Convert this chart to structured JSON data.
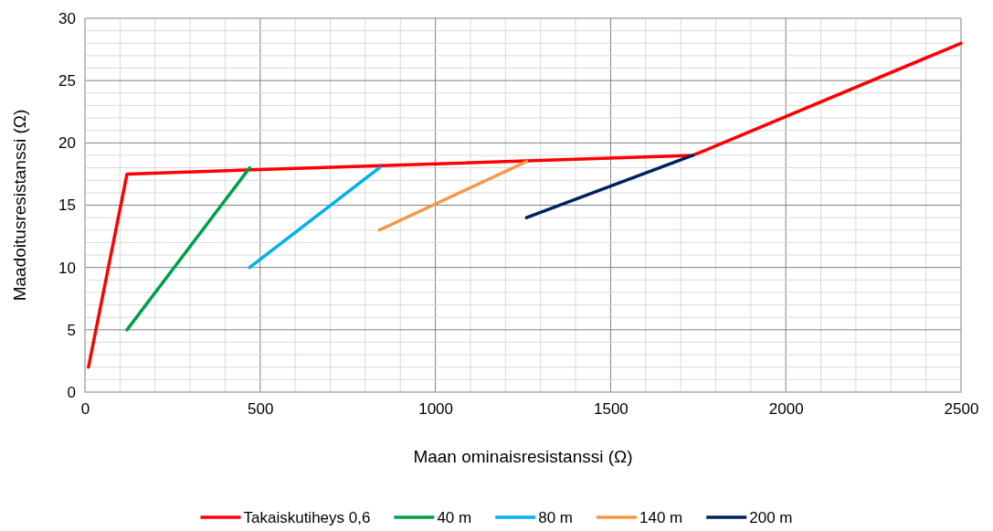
{
  "chart_data": {
    "type": "line",
    "xlabel": "Maan ominaisresistanssi (Ω)",
    "ylabel": "Maadoitusresistanssi (Ω)",
    "xlim": [
      0,
      2500
    ],
    "ylim": [
      0,
      30
    ],
    "xticks": [
      0,
      {
        "value": 100,
        "label": null
      },
      {
        "value": 200,
        "label": null
      },
      {
        "value": 300,
        "label": null
      },
      {
        "value": 400,
        "label": null
      },
      500,
      {
        "value": 600,
        "label": null
      },
      {
        "value": 700,
        "label": null
      },
      {
        "value": 800,
        "label": null
      },
      {
        "value": 900,
        "label": null
      },
      1000,
      {
        "value": 1100,
        "label": null
      },
      {
        "value": 1200,
        "label": null
      },
      {
        "value": 1300,
        "label": null
      },
      {
        "value": 1400,
        "label": null
      },
      1500,
      {
        "value": 1600,
        "label": null
      },
      {
        "value": 1700,
        "label": null
      },
      {
        "value": 1800,
        "label": null
      },
      {
        "value": 1900,
        "label": null
      },
      2000,
      {
        "value": 2100,
        "label": null
      },
      {
        "value": 2200,
        "label": null
      },
      {
        "value": 2300,
        "label": null
      },
      {
        "value": 2400,
        "label": null
      },
      2500
    ],
    "yticks": [
      0,
      {
        "value": 1,
        "label": null
      },
      {
        "value": 2,
        "label": null
      },
      {
        "value": 3,
        "label": null
      },
      {
        "value": 4,
        "label": null
      },
      5,
      {
        "value": 6,
        "label": null
      },
      {
        "value": 7,
        "label": null
      },
      {
        "value": 8,
        "label": null
      },
      {
        "value": 9,
        "label": null
      },
      10,
      {
        "value": 11,
        "label": null
      },
      {
        "value": 12,
        "label": null
      },
      {
        "value": 13,
        "label": null
      },
      {
        "value": 14,
        "label": null
      },
      15,
      {
        "value": 16,
        "label": null
      },
      {
        "value": 17,
        "label": null
      },
      {
        "value": 18,
        "label": null
      },
      {
        "value": 19,
        "label": null
      },
      20,
      {
        "value": 21,
        "label": null
      },
      {
        "value": 22,
        "label": null
      },
      {
        "value": 23,
        "label": null
      },
      {
        "value": 24,
        "label": null
      },
      25,
      {
        "value": 26,
        "label": null
      },
      {
        "value": 27,
        "label": null
      },
      {
        "value": 28,
        "label": null
      },
      {
        "value": 29,
        "label": null
      },
      30
    ],
    "grid": true,
    "legend": "bottom",
    "marker": "none",
    "line_style": "solid",
    "series": [
      {
        "name": "Takaiskutiheys 0,6",
        "color": "#ff0000",
        "x": [
          10,
          120,
          1735,
          2500
        ],
        "values": [
          2,
          17.5,
          19,
          28
        ]
      },
      {
        "name": "40 m",
        "color": "#00a04a",
        "x": [
          120,
          470
        ],
        "values": [
          5,
          18
        ]
      },
      {
        "name": "80 m",
        "color": "#00b0f0",
        "x": [
          470,
          840
        ],
        "values": [
          10,
          18
        ]
      },
      {
        "name": "140 m",
        "color": "#f79646",
        "x": [
          840,
          1260
        ],
        "values": [
          13,
          18.5
        ]
      },
      {
        "name": "200 m",
        "color": "#002060",
        "x": [
          1260,
          1735
        ],
        "values": [
          14,
          19
        ]
      }
    ]
  }
}
